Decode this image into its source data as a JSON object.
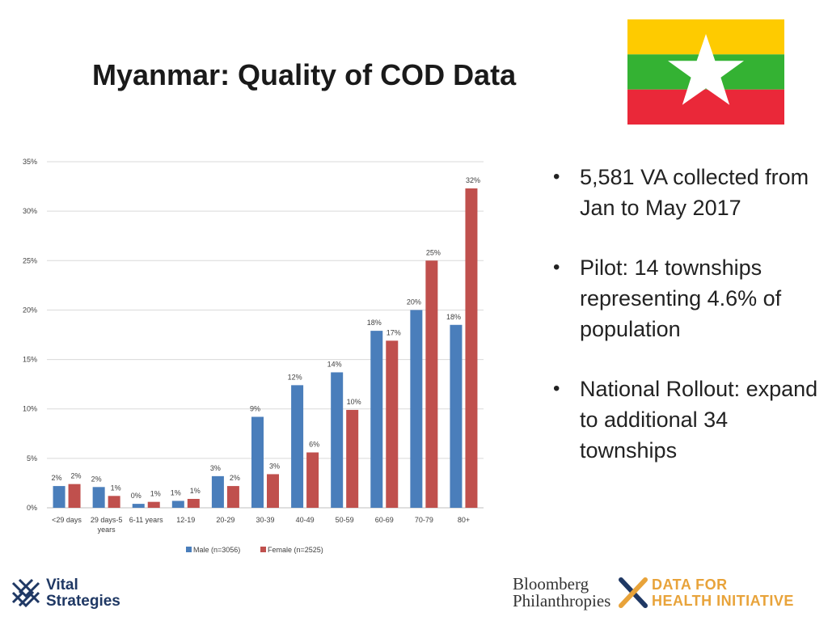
{
  "title": "Myanmar: Quality of COD Data",
  "colors": {
    "male": "#4a7ebb",
    "female": "#c0504d",
    "flag_yellow": "#fecb00",
    "flag_green": "#34b233",
    "flag_red": "#ea2839"
  },
  "bullets": [
    "5,581 VA collected from Jan to May 2017",
    "Pilot: 14 townships representing 4.6% of population",
    "National Rollout: expand to additional 34 townships"
  ],
  "logos": {
    "vital_strategies": [
      "Vital",
      "Strategies"
    ],
    "bloomberg": [
      "Bloomberg",
      "Philanthropies"
    ],
    "data_for_health": [
      "DATA FOR",
      "HEALTH INITIATIVE"
    ]
  },
  "chart_data": {
    "type": "bar",
    "categories": [
      "<29 days",
      "29 days-5 years",
      "6-11 years",
      "12-19",
      "20-29",
      "30-39",
      "40-49",
      "50-59",
      "60-69",
      "70-79",
      "80+"
    ],
    "series": [
      {
        "name": "Male (n=3056)",
        "values": [
          2.2,
          2.1,
          0.4,
          0.7,
          3.2,
          9.2,
          12.4,
          13.7,
          17.9,
          20.0,
          18.5
        ],
        "labels": [
          "2%",
          "2%",
          "0%",
          "1%",
          "3%",
          "9%",
          "12%",
          "14%",
          "18%",
          "20%",
          "18%"
        ]
      },
      {
        "name": "Female (n=2525)",
        "values": [
          2.4,
          1.2,
          0.6,
          0.9,
          2.2,
          3.4,
          5.6,
          9.9,
          16.9,
          25.0,
          32.3
        ],
        "labels": [
          "2%",
          "1%",
          "1%",
          "1%",
          "2%",
          "3%",
          "6%",
          "10%",
          "17%",
          "25%",
          "32%"
        ]
      }
    ],
    "yticks": [
      "0%",
      "5%",
      "10%",
      "15%",
      "20%",
      "25%",
      "30%",
      "35%"
    ],
    "ylim": [
      0,
      35
    ],
    "grid": true,
    "legend": "bottom"
  }
}
